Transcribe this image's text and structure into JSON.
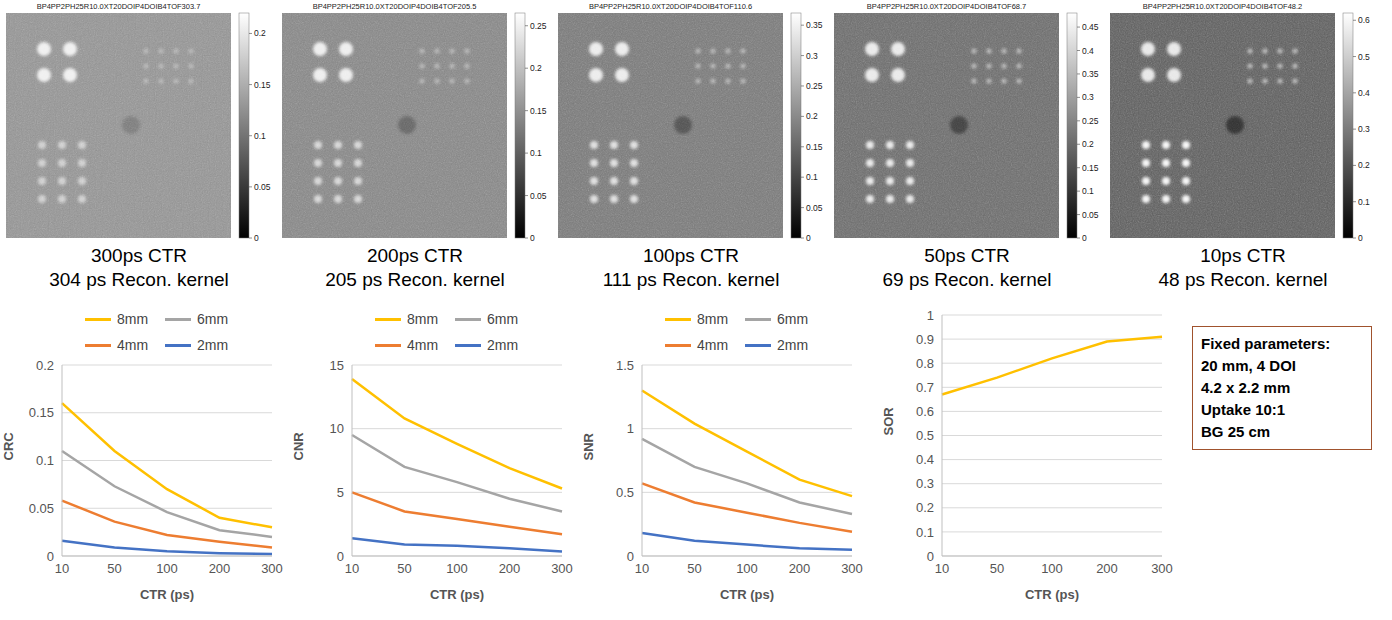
{
  "panels": [
    {
      "title": "BP4PP2PH25R10.0XT20DOIP4DOIB4TOF303.7",
      "caption": [
        "300ps CTR",
        "304 ps Recon. kernel"
      ],
      "colorbar": {
        "range": [
          0,
          0.22
        ],
        "ticks": [
          0,
          0.05,
          0.1,
          0.15,
          0.2
        ]
      }
    },
    {
      "title": "BP4PP2PH25R10.0XT20DOIP4DOIB4TOF205.5",
      "caption": [
        "200ps CTR",
        "205 ps Recon. kernel"
      ],
      "colorbar": {
        "range": [
          0,
          0.265
        ],
        "ticks": [
          0,
          0.05,
          0.1,
          0.15,
          0.2,
          0.25
        ]
      }
    },
    {
      "title": "BP4PP2PH25R10.0XT20DOIP4DOIB4TOF110.6",
      "caption": [
        "100ps CTR",
        "111 ps Recon. kernel"
      ],
      "colorbar": {
        "range": [
          0,
          0.37
        ],
        "ticks": [
          0,
          0.05,
          0.1,
          0.15,
          0.2,
          0.25,
          0.3,
          0.35
        ]
      }
    },
    {
      "title": "BP4PP2PH25R10.0XT20DOIP4DOIB4TOF68.7",
      "caption": [
        "50ps CTR",
        "69 ps Recon. kernel"
      ],
      "colorbar": {
        "range": [
          0,
          0.48
        ],
        "ticks": [
          0,
          0.05,
          0.1,
          0.15,
          0.2,
          0.25,
          0.3,
          0.35,
          0.4,
          0.45
        ]
      }
    },
    {
      "title": "BP4PP2PH25R10.0XT20DOIP4DOIB4TOF48.2",
      "caption": [
        "10ps CTR",
        "48 ps Recon. kernel"
      ],
      "colorbar": {
        "range": [
          0,
          0.62
        ],
        "ticks": [
          0,
          0.1,
          0.2,
          0.3,
          0.4,
          0.5,
          0.6
        ]
      }
    }
  ],
  "chart_data": [
    {
      "type": "line",
      "ylabel": "CRC",
      "xlabel": "CTR (ps)",
      "categories": [
        "10",
        "50",
        "100",
        "200",
        "300"
      ],
      "ylim": [
        0,
        0.2
      ],
      "yticks": [
        0,
        0.05,
        0.1,
        0.15,
        0.2
      ],
      "grid": true,
      "legend": "top",
      "series": [
        {
          "name": "8mm",
          "color": "#ffc000",
          "values": [
            0.16,
            0.11,
            0.07,
            0.04,
            0.03
          ]
        },
        {
          "name": "6mm",
          "color": "#a5a5a5",
          "values": [
            0.11,
            0.073,
            0.046,
            0.027,
            0.02
          ]
        },
        {
          "name": "4mm",
          "color": "#ed7d31",
          "values": [
            0.058,
            0.036,
            0.022,
            0.015,
            0.009
          ]
        },
        {
          "name": "2mm",
          "color": "#4472c4",
          "values": [
            0.016,
            0.009,
            0.005,
            0.003,
            0.002
          ]
        }
      ]
    },
    {
      "type": "line",
      "ylabel": "CNR",
      "xlabel": "CTR (ps)",
      "categories": [
        "10",
        "50",
        "100",
        "200",
        "300"
      ],
      "ylim": [
        0,
        15
      ],
      "yticks": [
        0,
        5,
        10,
        15
      ],
      "grid": true,
      "legend": "top",
      "series": [
        {
          "name": "8mm",
          "color": "#ffc000",
          "values": [
            13.9,
            10.8,
            8.8,
            6.9,
            5.3
          ]
        },
        {
          "name": "6mm",
          "color": "#a5a5a5",
          "values": [
            9.5,
            7.0,
            5.8,
            4.5,
            3.5
          ]
        },
        {
          "name": "4mm",
          "color": "#ed7d31",
          "values": [
            5.0,
            3.5,
            2.9,
            2.3,
            1.7
          ]
        },
        {
          "name": "2mm",
          "color": "#4472c4",
          "values": [
            1.4,
            0.9,
            0.8,
            0.6,
            0.35
          ]
        }
      ]
    },
    {
      "type": "line",
      "ylabel": "SNR",
      "xlabel": "CTR (ps)",
      "categories": [
        "10",
        "50",
        "100",
        "200",
        "300"
      ],
      "ylim": [
        0,
        1.5
      ],
      "yticks": [
        0,
        0.5,
        1,
        1.5
      ],
      "grid": true,
      "legend": "top",
      "series": [
        {
          "name": "8mm",
          "color": "#ffc000",
          "values": [
            1.3,
            1.04,
            0.82,
            0.6,
            0.47
          ]
        },
        {
          "name": "6mm",
          "color": "#a5a5a5",
          "values": [
            0.92,
            0.7,
            0.57,
            0.42,
            0.33
          ]
        },
        {
          "name": "4mm",
          "color": "#ed7d31",
          "values": [
            0.57,
            0.42,
            0.34,
            0.26,
            0.19
          ]
        },
        {
          "name": "2mm",
          "color": "#4472c4",
          "values": [
            0.18,
            0.12,
            0.09,
            0.06,
            0.05
          ]
        }
      ]
    },
    {
      "type": "line",
      "ylabel": "SOR",
      "xlabel": "CTR (ps)",
      "categories": [
        "10",
        "50",
        "100",
        "200",
        "300"
      ],
      "ylim": [
        0,
        1
      ],
      "yticks": [
        0,
        0.1,
        0.2,
        0.3,
        0.4,
        0.5,
        0.6,
        0.7,
        0.8,
        0.9,
        1
      ],
      "grid": true,
      "series": [
        {
          "color": "#ffc000",
          "values": [
            0.67,
            0.74,
            0.82,
            0.89,
            0.91
          ]
        }
      ]
    }
  ],
  "fixed_parameters": {
    "title": "Fixed parameters:",
    "lines": [
      "20 mm, 4 DOI",
      "4.2 x 2.2 mm",
      "Uptake 10:1",
      "BG 25 cm"
    ]
  }
}
